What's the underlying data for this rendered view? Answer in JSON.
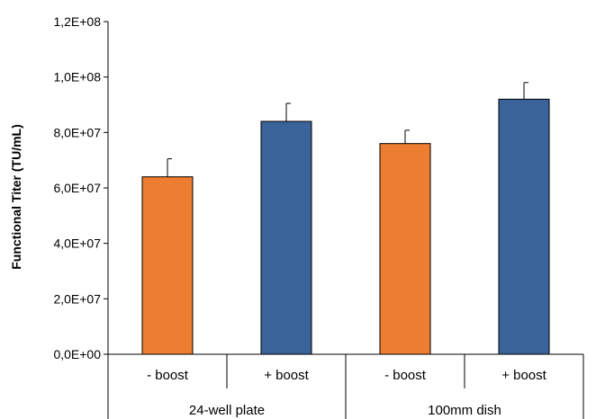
{
  "chart_data": {
    "type": "bar",
    "ylabel": "Functional Titer (TU/mL)",
    "xlabel": "",
    "ylim": [
      0,
      120000000
    ],
    "yticks": [
      {
        "value": 0,
        "label": "0,0E+00"
      },
      {
        "value": 20000000,
        "label": "2,0E+07"
      },
      {
        "value": 40000000,
        "label": "4,0E+07"
      },
      {
        "value": 60000000,
        "label": "6,0E+07"
      },
      {
        "value": 80000000,
        "label": "8,0E+07"
      },
      {
        "value": 100000000,
        "label": "1,0E+08"
      },
      {
        "value": 120000000,
        "label": "1,2E+08"
      }
    ],
    "groups": [
      {
        "name": "24-well plate",
        "bars": [
          {
            "category": "- boost",
            "value": 64000000,
            "error": 6500000,
            "color": "#ED7D31"
          },
          {
            "category": "+ boost",
            "value": 84000000,
            "error": 6500000,
            "color": "#3A6499"
          }
        ]
      },
      {
        "name": "100mm dish",
        "bars": [
          {
            "category": "- boost",
            "value": 76000000,
            "error": 4800000,
            "color": "#ED7D31"
          },
          {
            "category": "+ boost",
            "value": 92000000,
            "error": 6000000,
            "color": "#3A6499"
          }
        ]
      }
    ],
    "grid": false,
    "legend": "none"
  }
}
